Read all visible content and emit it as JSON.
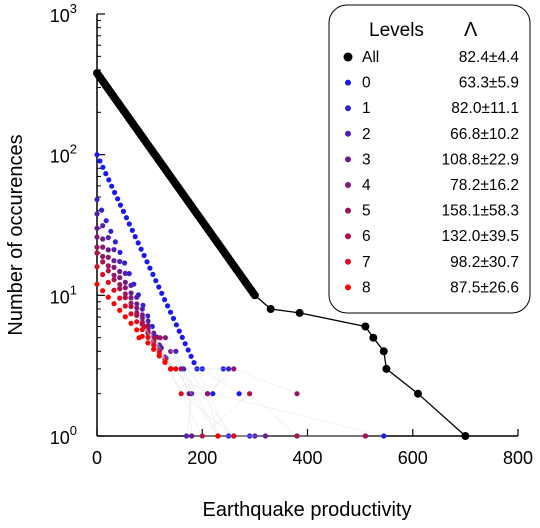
{
  "chart_data": {
    "type": "scatter",
    "xlabel": "Earthquake productivity",
    "ylabel": "Number of occurences",
    "xlim": [
      0,
      800
    ],
    "ylim": [
      1,
      1000
    ],
    "yscale": "log",
    "xticks": [
      "0",
      "200",
      "400",
      "600",
      "800"
    ],
    "yticks": [
      {
        "value": 1,
        "base": "10",
        "exp": "0"
      },
      {
        "value": 10,
        "base": "10",
        "exp": "1"
      },
      {
        "value": 100,
        "base": "10",
        "exp": "2"
      },
      {
        "value": 1000,
        "base": "10",
        "exp": "3"
      }
    ],
    "grid": false,
    "legend": {
      "placement": "top-right",
      "header_label": "Levels",
      "header_symbol": "Λ",
      "entries": [
        {
          "label": "All",
          "value": "82.4±4.4",
          "color": "#000000"
        },
        {
          "label": "0",
          "value": "63.3±5.9",
          "color": "#1a1aee"
        },
        {
          "label": "1",
          "value": "82.0±11.1",
          "color": "#3222d0"
        },
        {
          "label": "2",
          "value": "66.8±10.2",
          "color": "#5020b0"
        },
        {
          "label": "3",
          "value": "108.8±22.9",
          "color": "#6a1a90"
        },
        {
          "label": "4",
          "value": "78.2±16.2",
          "color": "#821878"
        },
        {
          "label": "5",
          "value": "158.1±58.3",
          "color": "#98145e"
        },
        {
          "label": "6",
          "value": "132.0±39.5",
          "color": "#b01048"
        },
        {
          "label": "7",
          "value": "98.2±30.7",
          "color": "#dd0a22"
        },
        {
          "label": "8",
          "value": "87.5±26.6",
          "color": "#ff0000"
        }
      ]
    },
    "series": [
      {
        "name": "All",
        "color": "#000000",
        "lines": true,
        "y0": 380,
        "xtail": [
          [
            330,
            8
          ],
          [
            385,
            7.5
          ],
          [
            510,
            6
          ],
          [
            525,
            5
          ],
          [
            545,
            4
          ],
          [
            550,
            3
          ],
          [
            610,
            2
          ],
          [
            700,
            1
          ]
        ]
      },
      {
        "name": "0",
        "color": "#1a1aee",
        "y0": 100,
        "xtail": [
          [
            250,
            1
          ],
          [
            290,
            1
          ],
          [
            380,
            1
          ],
          [
            510,
            1
          ],
          [
            545,
            1
          ],
          [
            220,
            2
          ],
          [
            240,
            3
          ],
          [
            200,
            3
          ],
          [
            270,
            2
          ]
        ]
      },
      {
        "name": "1",
        "color": "#3222d0",
        "y0": 48,
        "xtail": [
          [
            210,
            2
          ],
          [
            230,
            1
          ],
          [
            165,
            3
          ],
          [
            250,
            3
          ]
        ]
      },
      {
        "name": "2",
        "color": "#5020b0",
        "y0": 38,
        "xtail": [
          [
            150,
            4
          ],
          [
            180,
            2
          ],
          [
            170,
            1
          ],
          [
            300,
            1
          ]
        ]
      },
      {
        "name": "3",
        "color": "#6a1a90",
        "y0": 30,
        "xtail": [
          [
            140,
            4
          ],
          [
            175,
            2
          ],
          [
            180,
            1
          ],
          [
            320,
            1
          ]
        ]
      },
      {
        "name": "4",
        "color": "#821878",
        "y0": 26,
        "xtail": [
          [
            130,
            5
          ],
          [
            160,
            3
          ],
          [
            260,
            1
          ]
        ]
      },
      {
        "name": "5",
        "color": "#98145e",
        "y0": 22,
        "xtail": [
          [
            120,
            5
          ],
          [
            210,
            2
          ],
          [
            260,
            3
          ],
          [
            380,
            2
          ]
        ]
      },
      {
        "name": "6",
        "color": "#b01048",
        "y0": 20,
        "xtail": [
          [
            110,
            5
          ],
          [
            200,
            1
          ],
          [
            290,
            2
          ],
          [
            380,
            1
          ],
          [
            510,
            1
          ]
        ]
      },
      {
        "name": "7",
        "color": "#dd0a22",
        "y0": 16,
        "xtail": [
          [
            90,
            6
          ],
          [
            160,
            2
          ],
          [
            260,
            1
          ]
        ]
      },
      {
        "name": "8",
        "color": "#ff0000",
        "y0": 12,
        "xtail": [
          [
            80,
            5
          ],
          [
            150,
            3
          ],
          [
            230,
            1
          ]
        ]
      }
    ]
  }
}
